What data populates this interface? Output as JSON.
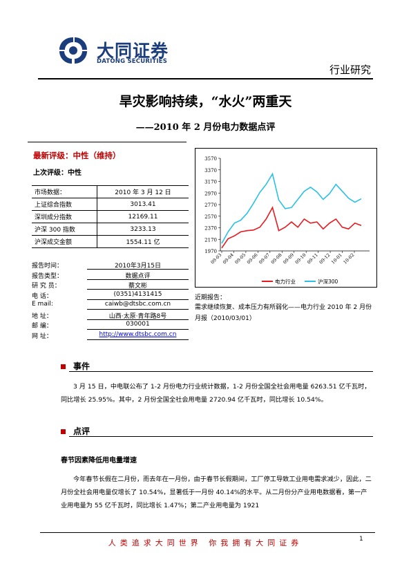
{
  "header": {
    "brand_cn": "大同证券",
    "brand_en": "DATONG SECURITIES",
    "report_type": "行业研究",
    "brand_color": "#1b3d7c"
  },
  "title": "旱灾影响持续，“水火”两重天",
  "subtitle": "——2010 年 2 月份电力数据点评",
  "rating": {
    "latest": "最新评级：中性（维持）",
    "previous": "上次评级：中性"
  },
  "market": {
    "rows": [
      {
        "label": "市场数据：",
        "value": "2010 年 3 月 12 日"
      },
      {
        "label": "上证综合指数",
        "value": "3013.41"
      },
      {
        "label": "深圳成分指数",
        "value": "12169.11"
      },
      {
        "label": "沪深 300 指数",
        "value": "3233.13"
      },
      {
        "label": "沪深成交金额",
        "value": "1554.11 亿"
      }
    ]
  },
  "info": {
    "report_time_label": "报告时间：",
    "report_time": "2010年3月15日",
    "report_kind_label": "报告类型：",
    "report_kind": "数据点评",
    "researcher_label": "研 究 员：",
    "researcher": "蔡文彬",
    "phone_label": "电     话：",
    "phone": "(0351)4131415",
    "email_label": "E     mail:",
    "email": "caiwb@dtsbc.com.cn",
    "address_label": "地     址：",
    "address": "山西·太原·青年路8号",
    "postcode_label": "邮     编：",
    "postcode": "030001",
    "website_label": "网     址：",
    "website": "http://www.dtsbc.com.cn"
  },
  "chart_data": {
    "type": "line",
    "x_ticks": [
      "09-03",
      "09-04",
      "09-05",
      "09-06",
      "09-07",
      "09-08",
      "09-09",
      "09-10",
      "09-11",
      "09-12",
      "10-01",
      "10-02"
    ],
    "y_ticks": [
      1970,
      2170,
      2370,
      2570,
      2770,
      2970,
      3170,
      3370,
      3570
    ],
    "ylim": [
      1970,
      3570
    ],
    "series": [
      {
        "name": "电力行业",
        "color": "#e8191e",
        "values": [
          2020,
          2180,
          2230,
          2300,
          2320,
          2330,
          2380,
          2520,
          2720,
          2320,
          2380,
          2470,
          2380,
          2520,
          2450,
          2470,
          2350,
          2450,
          2520,
          2380,
          2350,
          2450,
          2410
        ]
      },
      {
        "name": "沪深300",
        "color": "#29c0e8",
        "values": [
          2100,
          2300,
          2450,
          2500,
          2620,
          2790,
          2980,
          3120,
          3300,
          2850,
          2700,
          2720,
          2860,
          3000,
          3070,
          2990,
          2860,
          2960,
          3120,
          3000,
          2880,
          2810,
          2870
        ]
      }
    ]
  },
  "related": {
    "label": "近期报告：",
    "text": "需求继续恢复、成本压力有所弱化——电力行业 2010 年 2 月份月报（2010/03/01）"
  },
  "section_event": {
    "title": "事件",
    "paragraph": "3 月 15 日，中电联公布了 1-2 月份电力行业统计数据，1-2 月份全国全社会用电量 6263.51 亿千瓦时，同比增长 25.95%。其中，2 月份全国全社会用电量 2720.94 亿千瓦时，同比增长 10.54%。"
  },
  "section_comment": {
    "title": "点评",
    "subheading": "春节因素降低用电量增速",
    "paragraph": "今年春节长假在二月份，而去年在一月份，由于春节长假期间，工厂停工导致工业用电需求减少，因此，二月份全社会用电量仅增长了 10.54%，显著低于一月份 40.14%的水平。从二月份分产业用电数据看，第一产业用电量为 55 亿千瓦时，同比增长 1.47%；第二产业用电量为 1921"
  },
  "footer": {
    "slogan": "人类追求大同世界 你我拥有大同证券",
    "page": "1",
    "accent_color": "#c00000"
  }
}
